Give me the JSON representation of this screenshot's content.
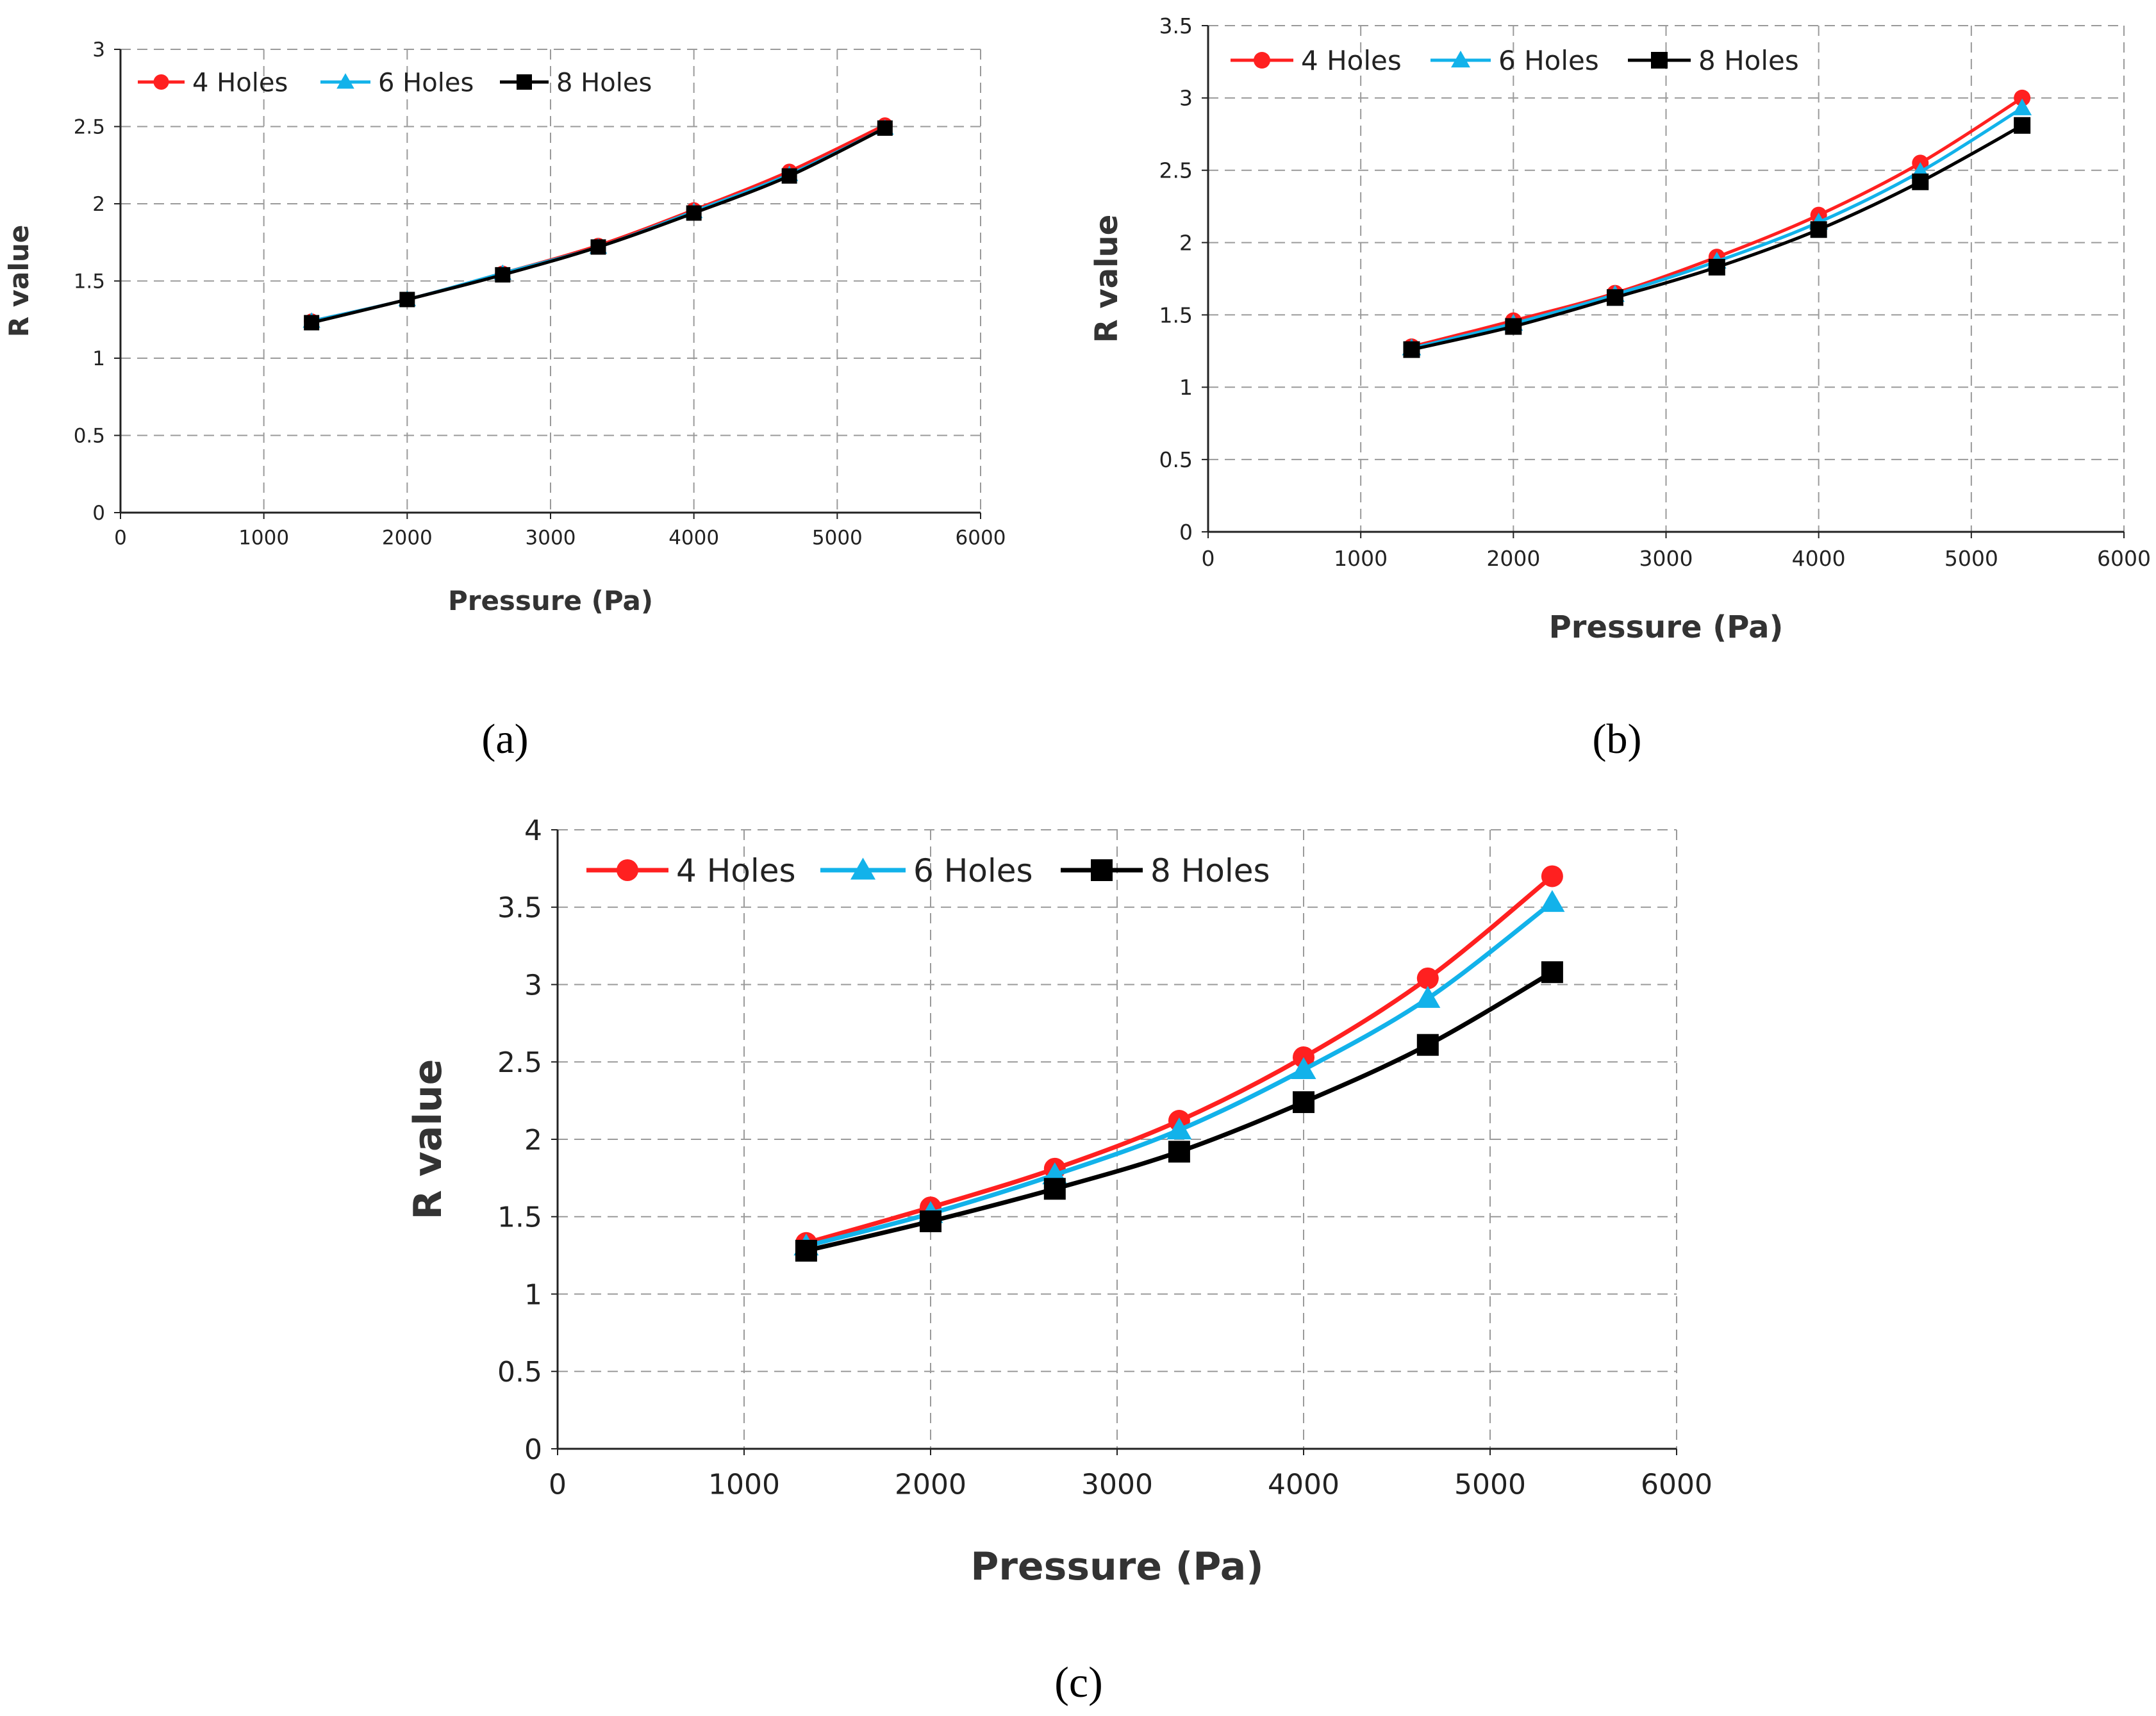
{
  "colors": {
    "series_4": "#ff2020",
    "series_6": "#12b2ea",
    "series_8": "#000000",
    "grid": "#9a9a9a",
    "axis": "#222222"
  },
  "chart_data": [
    {
      "type": "line",
      "caption": "(a)",
      "xlabel": "Pressure (Pa)",
      "ylabel": "R value",
      "xlim": [
        0,
        6000
      ],
      "ylim": [
        0,
        3
      ],
      "xticks": [
        "0",
        "1000",
        "2000",
        "3000",
        "4000",
        "5000",
        "6000"
      ],
      "yticks": [
        "0",
        "0.5",
        "1",
        "1.5",
        "2",
        "2.5",
        "3"
      ],
      "grid": true,
      "legend": "top-left",
      "x": [
        1333,
        2000,
        2666,
        3333,
        4000,
        4666,
        5333
      ],
      "series": [
        {
          "name": "4 Holes",
          "marker": "circle",
          "values": [
            1.24,
            1.38,
            1.55,
            1.73,
            1.96,
            2.21,
            2.51
          ]
        },
        {
          "name": "6 Holes",
          "marker": "triangle",
          "values": [
            1.24,
            1.38,
            1.55,
            1.72,
            1.95,
            2.19,
            2.49
          ]
        },
        {
          "name": "8 Holes",
          "marker": "square",
          "values": [
            1.23,
            1.38,
            1.54,
            1.72,
            1.94,
            2.18,
            2.49
          ]
        }
      ]
    },
    {
      "type": "line",
      "caption": "(b)",
      "xlabel": "Pressure (Pa)",
      "ylabel": "R value",
      "xlim": [
        0,
        6000
      ],
      "ylim": [
        0,
        3.5
      ],
      "xticks": [
        "0",
        "1000",
        "2000",
        "3000",
        "4000",
        "5000",
        "6000"
      ],
      "yticks": [
        "0",
        "0.5",
        "1",
        "1.5",
        "2",
        "2.5",
        "3",
        "3.5"
      ],
      "grid": true,
      "legend": "top-left",
      "x": [
        1333,
        2000,
        2666,
        3333,
        4000,
        4666,
        5333
      ],
      "series": [
        {
          "name": "4 Holes",
          "marker": "circle",
          "values": [
            1.28,
            1.46,
            1.65,
            1.9,
            2.19,
            2.55,
            3.0
          ]
        },
        {
          "name": "6 Holes",
          "marker": "triangle",
          "values": [
            1.27,
            1.44,
            1.64,
            1.87,
            2.14,
            2.49,
            2.93
          ]
        },
        {
          "name": "8 Holes",
          "marker": "square",
          "values": [
            1.26,
            1.42,
            1.62,
            1.83,
            2.09,
            2.42,
            2.81
          ]
        }
      ]
    },
    {
      "type": "line",
      "caption": "(c)",
      "xlabel": "Pressure (Pa)",
      "ylabel": "R value",
      "xlim": [
        0,
        6000
      ],
      "ylim": [
        0,
        4
      ],
      "xticks": [
        "0",
        "1000",
        "2000",
        "3000",
        "4000",
        "5000",
        "6000"
      ],
      "yticks": [
        "0",
        "0.5",
        "1",
        "1.5",
        "2",
        "2.5",
        "3",
        "3.5",
        "4"
      ],
      "grid": true,
      "legend": "top-left",
      "x": [
        1333,
        2000,
        2666,
        3333,
        4000,
        4666,
        5333
      ],
      "series": [
        {
          "name": "4 Holes",
          "marker": "circle",
          "values": [
            1.33,
            1.56,
            1.81,
            2.12,
            2.53,
            3.04,
            3.7
          ]
        },
        {
          "name": "6 Holes",
          "marker": "triangle",
          "values": [
            1.31,
            1.52,
            1.77,
            2.06,
            2.45,
            2.91,
            3.53
          ]
        },
        {
          "name": "8 Holes",
          "marker": "square",
          "values": [
            1.28,
            1.47,
            1.68,
            1.92,
            2.24,
            2.61,
            3.08
          ]
        }
      ]
    }
  ]
}
